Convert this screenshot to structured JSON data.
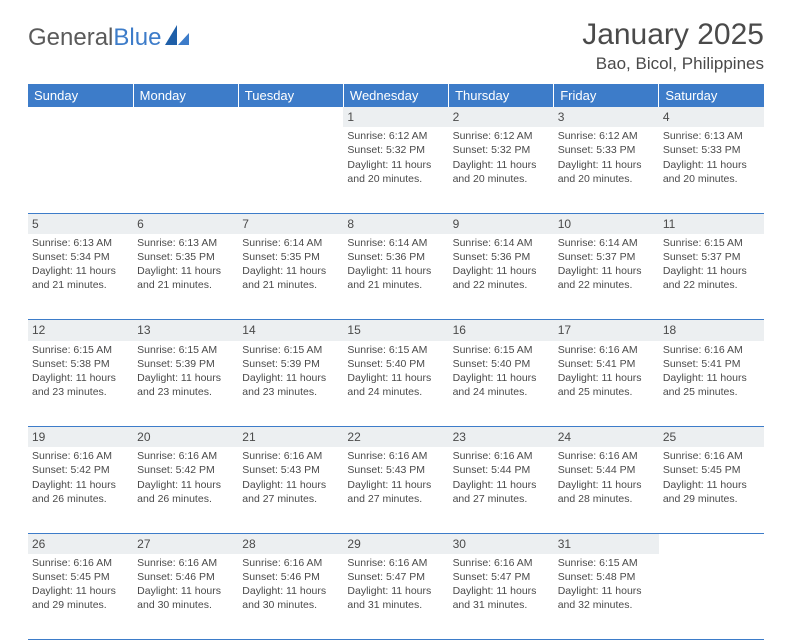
{
  "logo": {
    "part1": "General",
    "part2": "Blue"
  },
  "title": "January 2025",
  "location": "Bao, Bicol, Philippines",
  "colors": {
    "header_blue": "#3d7cc9",
    "daynum_bg": "#eceff1",
    "text": "#4a4a4a",
    "white": "#ffffff",
    "logo_gray": "#5a5a5a"
  },
  "fonts": {
    "title_size": 30,
    "location_size": 17,
    "weekday_size": 13,
    "daynum_size": 12,
    "cell_size": 10.5,
    "logo_size": 24
  },
  "weekdays": [
    "Sunday",
    "Monday",
    "Tuesday",
    "Wednesday",
    "Thursday",
    "Friday",
    "Saturday"
  ],
  "weeks": [
    {
      "nums": [
        "",
        "",
        "",
        "1",
        "2",
        "3",
        "4"
      ],
      "cells": [
        null,
        null,
        null,
        {
          "sunrise": "6:12 AM",
          "sunset": "5:32 PM",
          "daylight": "11 hours and 20 minutes."
        },
        {
          "sunrise": "6:12 AM",
          "sunset": "5:32 PM",
          "daylight": "11 hours and 20 minutes."
        },
        {
          "sunrise": "6:12 AM",
          "sunset": "5:33 PM",
          "daylight": "11 hours and 20 minutes."
        },
        {
          "sunrise": "6:13 AM",
          "sunset": "5:33 PM",
          "daylight": "11 hours and 20 minutes."
        }
      ]
    },
    {
      "nums": [
        "5",
        "6",
        "7",
        "8",
        "9",
        "10",
        "11"
      ],
      "cells": [
        {
          "sunrise": "6:13 AM",
          "sunset": "5:34 PM",
          "daylight": "11 hours and 21 minutes."
        },
        {
          "sunrise": "6:13 AM",
          "sunset": "5:35 PM",
          "daylight": "11 hours and 21 minutes."
        },
        {
          "sunrise": "6:14 AM",
          "sunset": "5:35 PM",
          "daylight": "11 hours and 21 minutes."
        },
        {
          "sunrise": "6:14 AM",
          "sunset": "5:36 PM",
          "daylight": "11 hours and 21 minutes."
        },
        {
          "sunrise": "6:14 AM",
          "sunset": "5:36 PM",
          "daylight": "11 hours and 22 minutes."
        },
        {
          "sunrise": "6:14 AM",
          "sunset": "5:37 PM",
          "daylight": "11 hours and 22 minutes."
        },
        {
          "sunrise": "6:15 AM",
          "sunset": "5:37 PM",
          "daylight": "11 hours and 22 minutes."
        }
      ]
    },
    {
      "nums": [
        "12",
        "13",
        "14",
        "15",
        "16",
        "17",
        "18"
      ],
      "cells": [
        {
          "sunrise": "6:15 AM",
          "sunset": "5:38 PM",
          "daylight": "11 hours and 23 minutes."
        },
        {
          "sunrise": "6:15 AM",
          "sunset": "5:39 PM",
          "daylight": "11 hours and 23 minutes."
        },
        {
          "sunrise": "6:15 AM",
          "sunset": "5:39 PM",
          "daylight": "11 hours and 23 minutes."
        },
        {
          "sunrise": "6:15 AM",
          "sunset": "5:40 PM",
          "daylight": "11 hours and 24 minutes."
        },
        {
          "sunrise": "6:15 AM",
          "sunset": "5:40 PM",
          "daylight": "11 hours and 24 minutes."
        },
        {
          "sunrise": "6:16 AM",
          "sunset": "5:41 PM",
          "daylight": "11 hours and 25 minutes."
        },
        {
          "sunrise": "6:16 AM",
          "sunset": "5:41 PM",
          "daylight": "11 hours and 25 minutes."
        }
      ]
    },
    {
      "nums": [
        "19",
        "20",
        "21",
        "22",
        "23",
        "24",
        "25"
      ],
      "cells": [
        {
          "sunrise": "6:16 AM",
          "sunset": "5:42 PM",
          "daylight": "11 hours and 26 minutes."
        },
        {
          "sunrise": "6:16 AM",
          "sunset": "5:42 PM",
          "daylight": "11 hours and 26 minutes."
        },
        {
          "sunrise": "6:16 AM",
          "sunset": "5:43 PM",
          "daylight": "11 hours and 27 minutes."
        },
        {
          "sunrise": "6:16 AM",
          "sunset": "5:43 PM",
          "daylight": "11 hours and 27 minutes."
        },
        {
          "sunrise": "6:16 AM",
          "sunset": "5:44 PM",
          "daylight": "11 hours and 27 minutes."
        },
        {
          "sunrise": "6:16 AM",
          "sunset": "5:44 PM",
          "daylight": "11 hours and 28 minutes."
        },
        {
          "sunrise": "6:16 AM",
          "sunset": "5:45 PM",
          "daylight": "11 hours and 29 minutes."
        }
      ]
    },
    {
      "nums": [
        "26",
        "27",
        "28",
        "29",
        "30",
        "31",
        ""
      ],
      "cells": [
        {
          "sunrise": "6:16 AM",
          "sunset": "5:45 PM",
          "daylight": "11 hours and 29 minutes."
        },
        {
          "sunrise": "6:16 AM",
          "sunset": "5:46 PM",
          "daylight": "11 hours and 30 minutes."
        },
        {
          "sunrise": "6:16 AM",
          "sunset": "5:46 PM",
          "daylight": "11 hours and 30 minutes."
        },
        {
          "sunrise": "6:16 AM",
          "sunset": "5:47 PM",
          "daylight": "11 hours and 31 minutes."
        },
        {
          "sunrise": "6:16 AM",
          "sunset": "5:47 PM",
          "daylight": "11 hours and 31 minutes."
        },
        {
          "sunrise": "6:15 AM",
          "sunset": "5:48 PM",
          "daylight": "11 hours and 32 minutes."
        },
        null
      ]
    }
  ],
  "labels": {
    "sunrise": "Sunrise: ",
    "sunset": "Sunset: ",
    "daylight": "Daylight: "
  }
}
